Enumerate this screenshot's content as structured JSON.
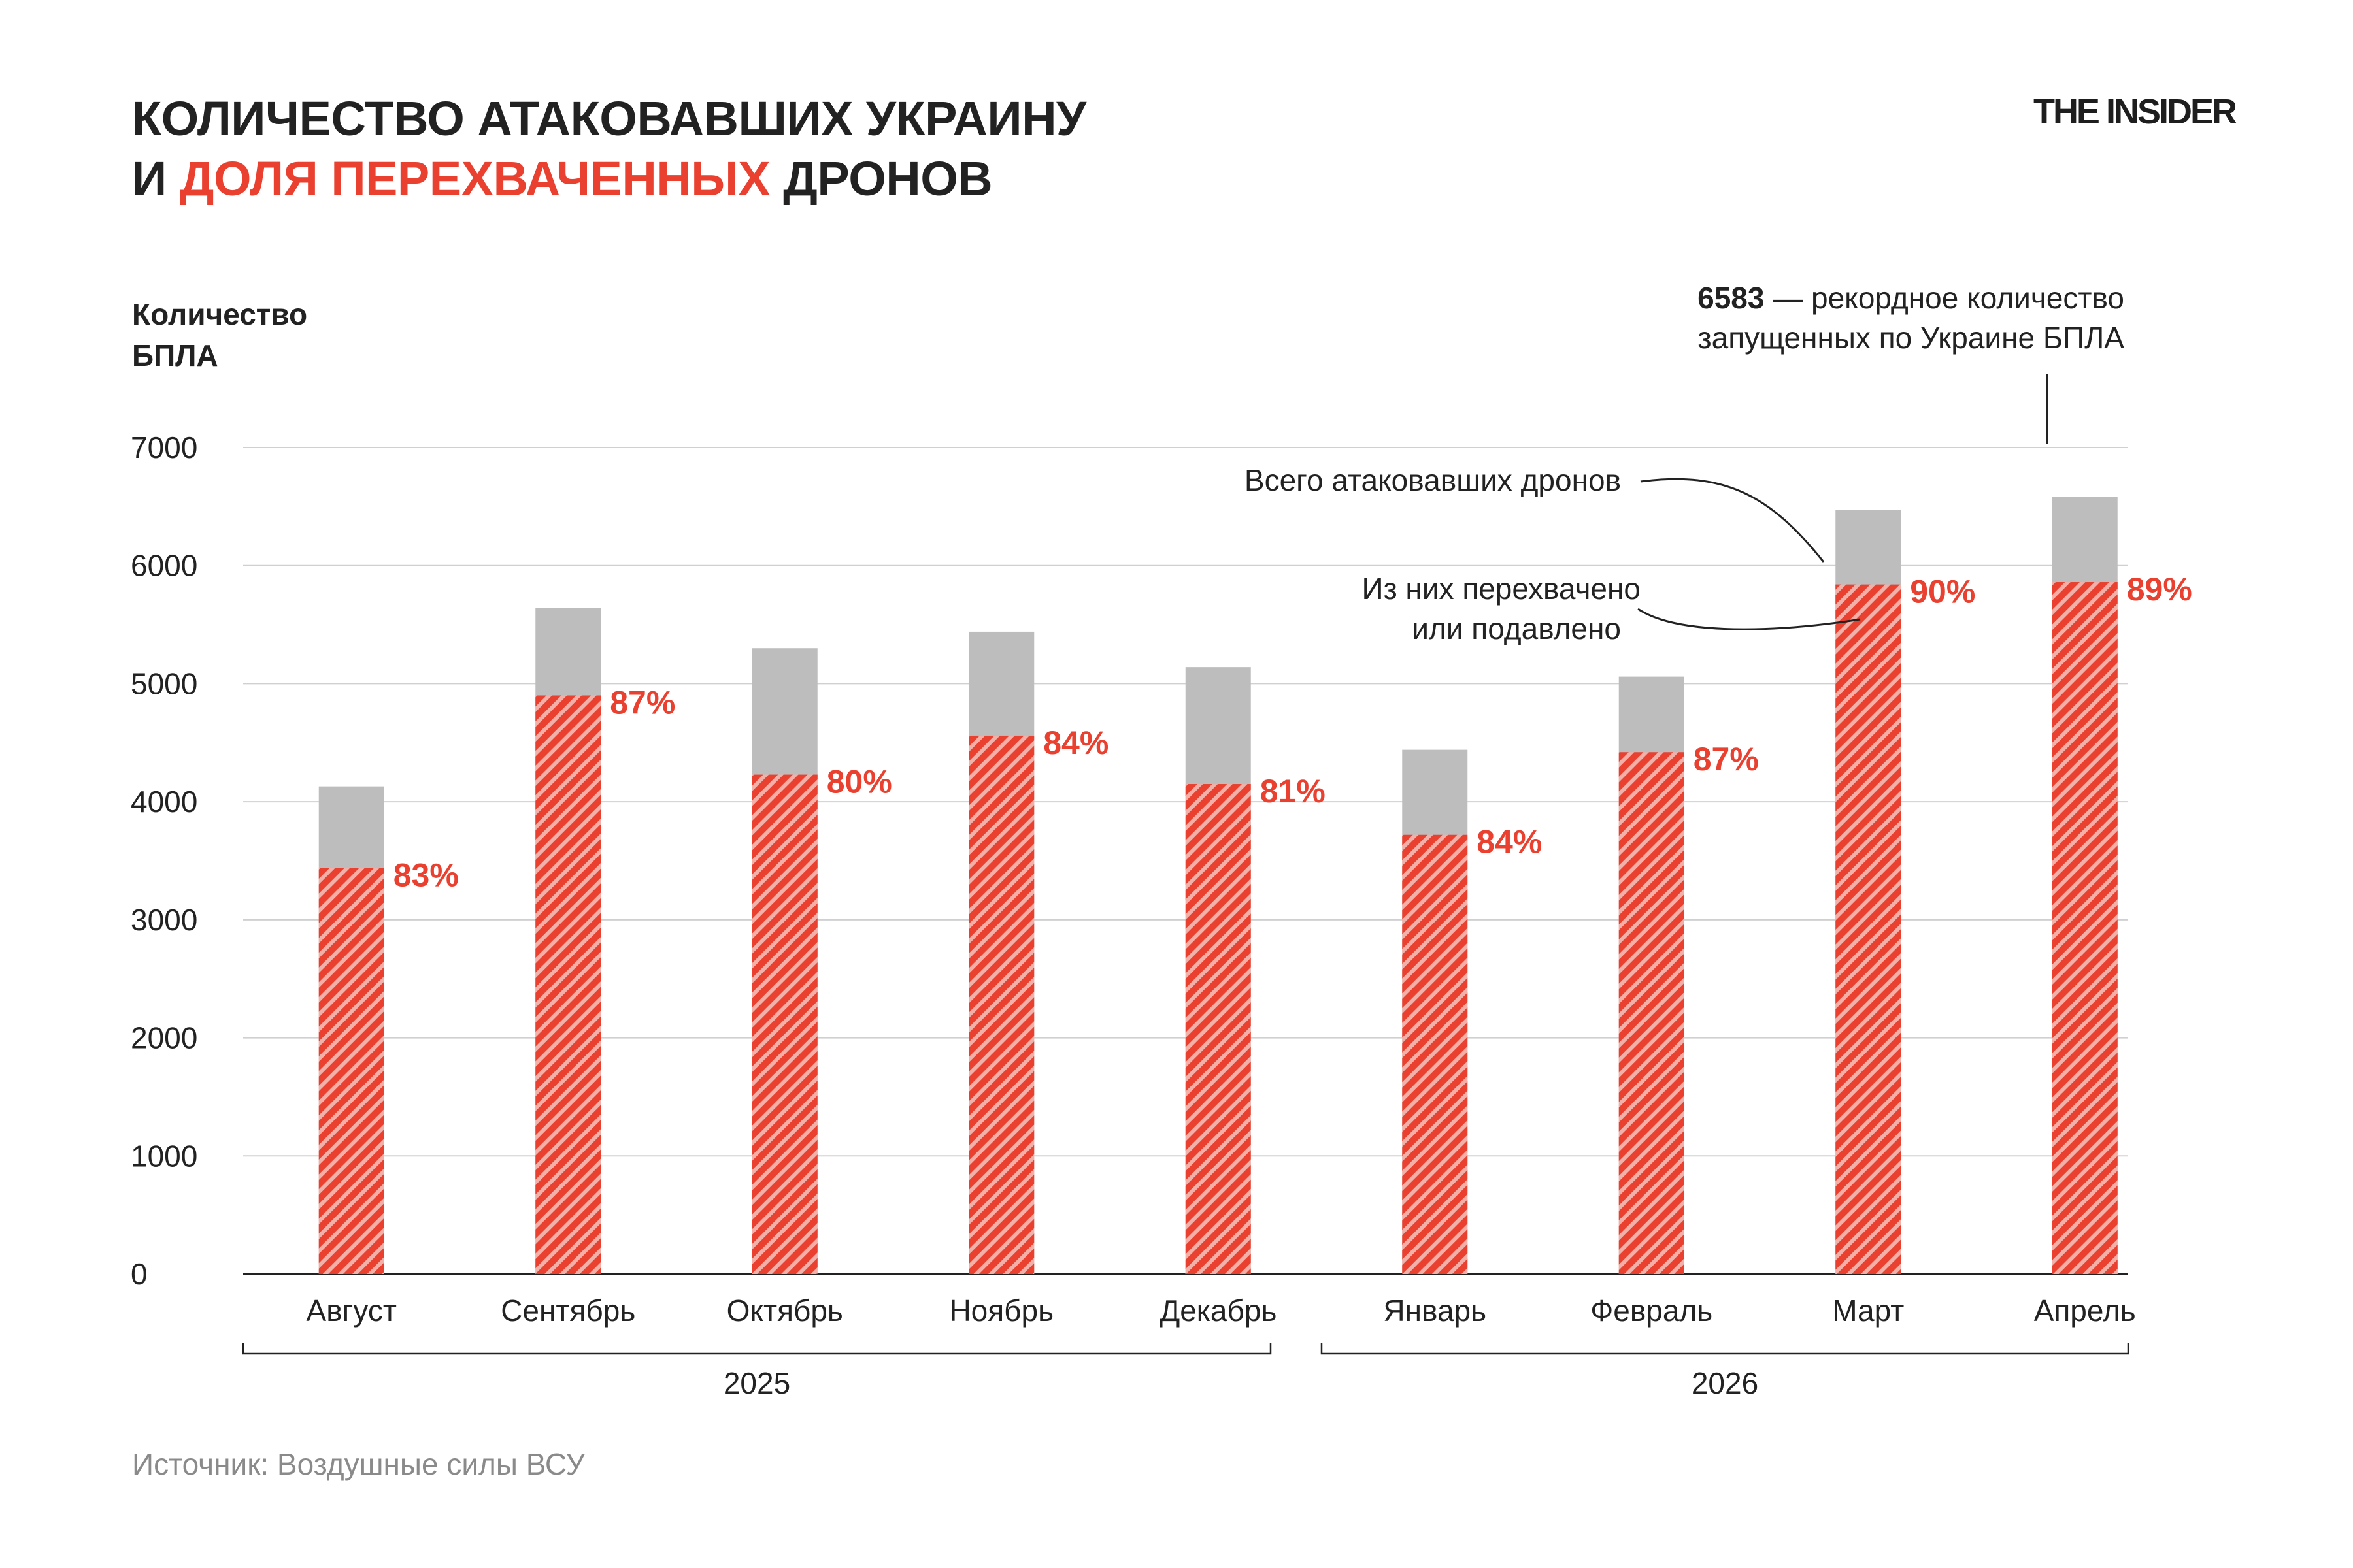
{
  "header": {
    "title_line1": "КОЛИЧЕСТВО АТАКОВАВШИХ УКРАИНУ",
    "title_line2_prefix": "И ",
    "title_line2_highlight": "ДОЛЯ ПЕРЕХВАЧЕННЫХ",
    "title_line2_suffix": " ДРОНОВ",
    "logo": "THE INSIDER"
  },
  "footer": {
    "source": "Источник: Воздушные силы ВСУ"
  },
  "colors": {
    "total": "#bdbdbd",
    "intercepted": "#e9402f",
    "accent": "#e9402f",
    "grid": "#d0d0d0",
    "text": "#222222"
  },
  "annotations": {
    "record_value": "6583",
    "record_line1_rest": " — рекордное количество",
    "record_line2": "запущенных по Украине БПЛА",
    "total_label": "Всего атаковавших дронов",
    "intercepted_line1": "Из них перехвачено",
    "intercepted_line2": "или подавлено"
  },
  "chart_data": {
    "type": "bar",
    "stacked_overlay": true,
    "categories": [
      "Август",
      "Сентябрь",
      "Октябрь",
      "Ноябрь",
      "Декабрь",
      "Январь",
      "Февраль",
      "Март",
      "Апрель"
    ],
    "year_groups": [
      {
        "label": "2025",
        "from": 0,
        "to": 4
      },
      {
        "label": "2026",
        "from": 5,
        "to": 8
      }
    ],
    "ylabel_lines": [
      "Количество",
      "БПЛА"
    ],
    "ylim": [
      0,
      7000
    ],
    "yticks": [
      0,
      1000,
      2000,
      3000,
      4000,
      5000,
      6000,
      7000
    ],
    "grid": true,
    "series": [
      {
        "key": "total",
        "values": [
          4130,
          5640,
          5300,
          5440,
          5140,
          4440,
          5060,
          6470,
          6583
        ]
      },
      {
        "key": "intercepted",
        "values": [
          3440,
          4900,
          4230,
          4560,
          4150,
          3720,
          4420,
          5840,
          5860
        ]
      }
    ],
    "percent_labels": [
      "83%",
      "87%",
      "80%",
      "84%",
      "81%",
      "84%",
      "87%",
      "90%",
      "89%"
    ]
  }
}
